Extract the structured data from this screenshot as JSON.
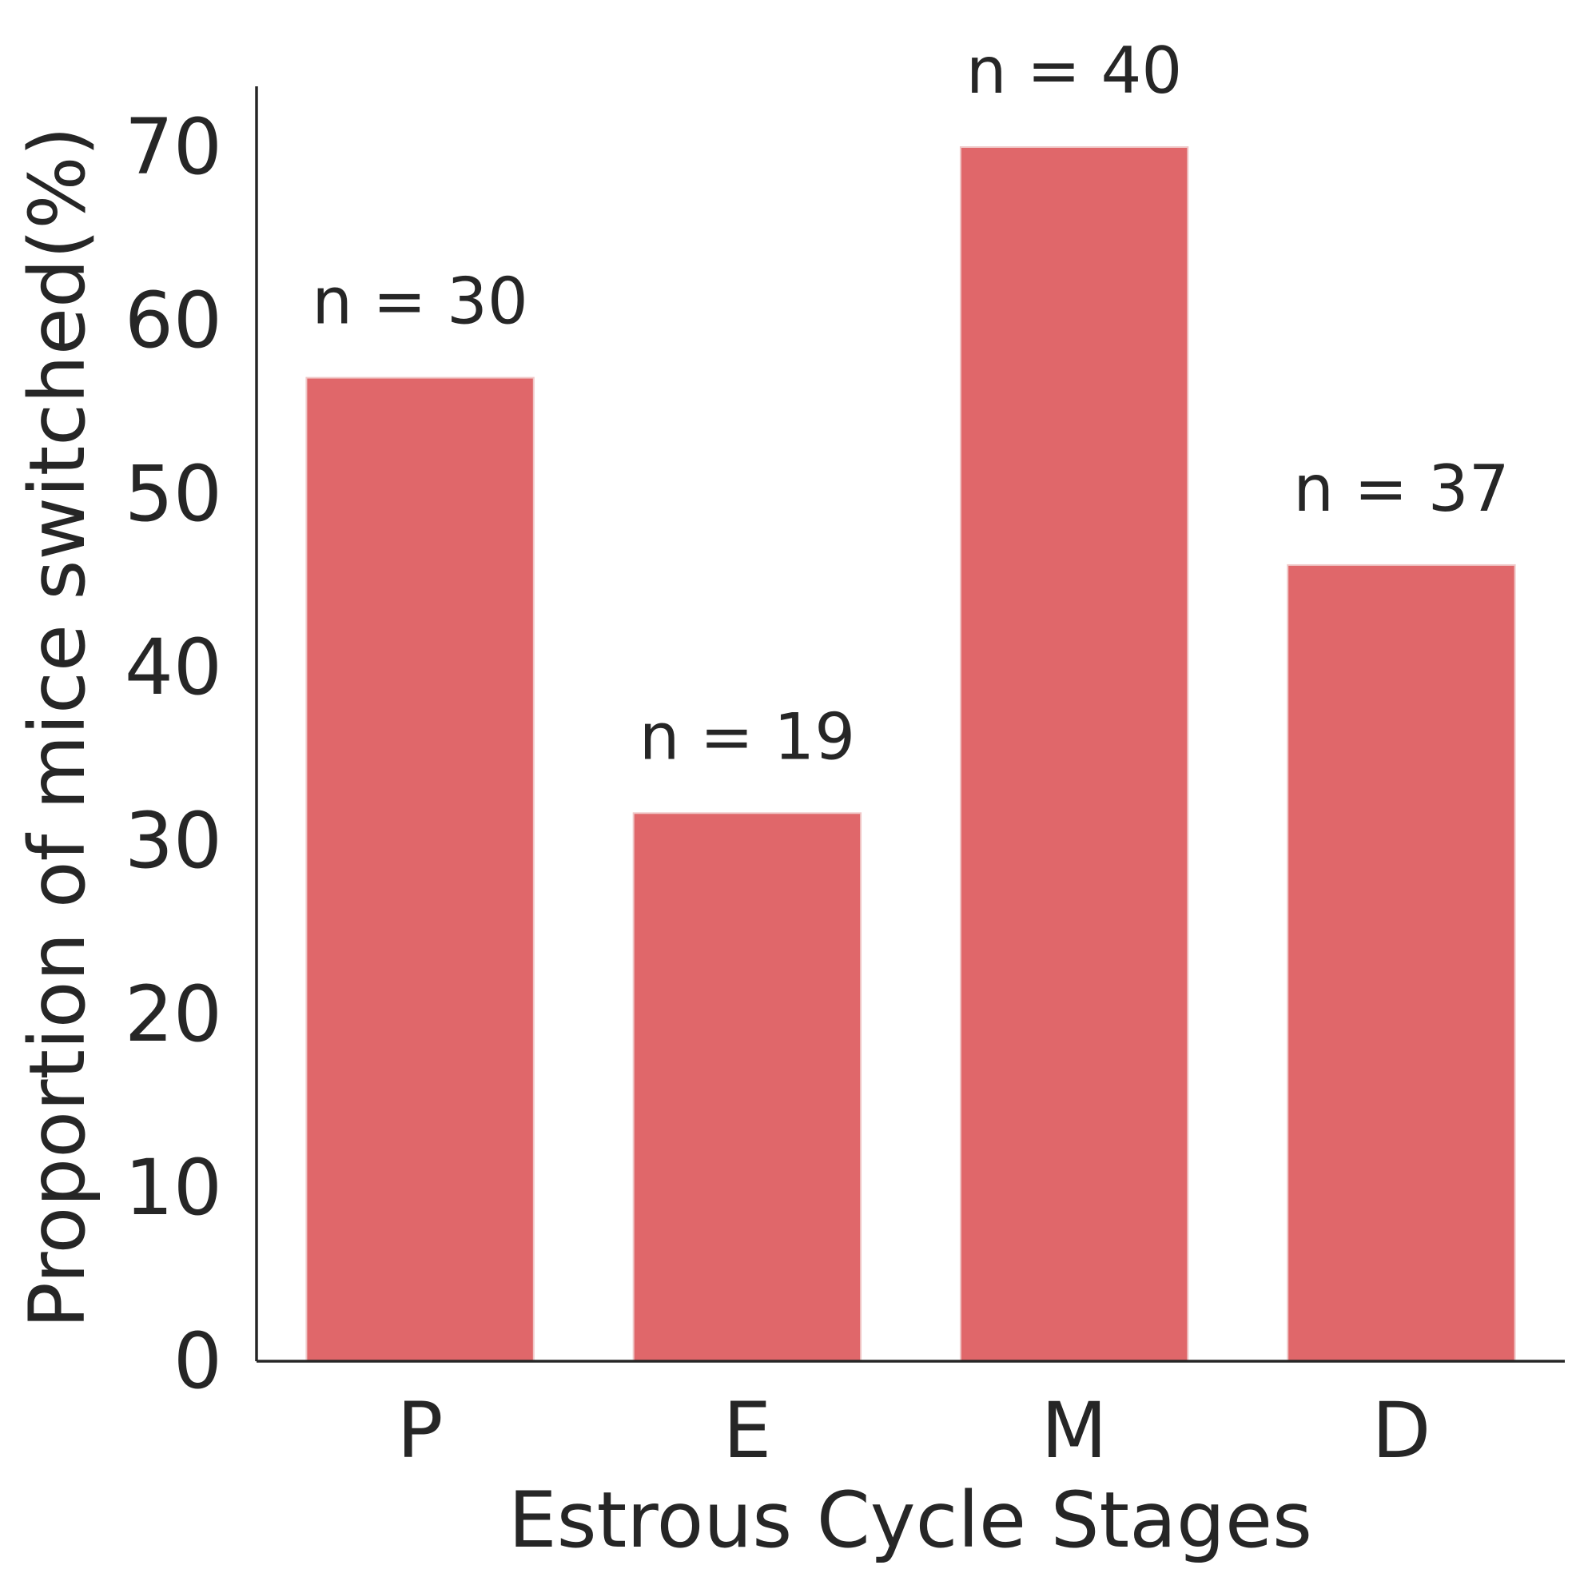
{
  "chart_data": {
    "type": "bar",
    "title": "",
    "xlabel": "Estrous Cycle Stages",
    "ylabel": "Proportion of mice switched(%)",
    "categories": [
      "P",
      "E",
      "M",
      "D"
    ],
    "values": [
      56.7,
      31.6,
      70.0,
      45.9
    ],
    "annotations": [
      "n = 30",
      "n = 19",
      "n = 40",
      "n = 37"
    ],
    "ylim": [
      0,
      73.5
    ],
    "yticks": [
      0,
      10,
      20,
      30,
      40,
      50,
      60,
      70
    ],
    "grid": false,
    "legend": "none",
    "colors": {
      "bar": "#e0676a",
      "bar_edge": "#f0c8c8",
      "axis": "#262626",
      "text": "#262626"
    }
  }
}
